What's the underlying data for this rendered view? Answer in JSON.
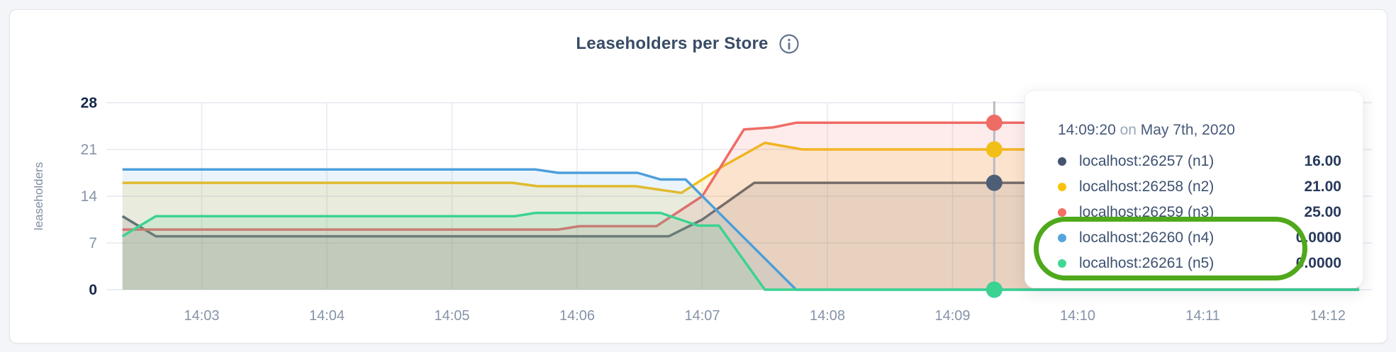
{
  "page": {
    "background": "#f4f5f9"
  },
  "panel": {
    "background": "#ffffff",
    "border_color": "#e3e4e7"
  },
  "header": {
    "title": "Leaseholders per Store"
  },
  "icons": {
    "info_icon": {
      "glyph": "i",
      "color": "#64748c"
    }
  },
  "chart_data": {
    "type": "area",
    "title": "Leaseholders per Store",
    "xlabel": "",
    "ylabel": "leaseholders",
    "ylim": [
      0,
      28
    ],
    "yticks": [
      0,
      7,
      14,
      21,
      28
    ],
    "ytick_bold": [
      0,
      28
    ],
    "xticks": [
      "14:03",
      "14:04",
      "14:05",
      "14:06",
      "14:07",
      "14:08",
      "14:09",
      "14:10",
      "14:11",
      "14:12"
    ],
    "x_domain": [
      "14:02:22",
      "14:12:15"
    ],
    "grid": true,
    "legend_position": "tooltip",
    "series": [
      {
        "name": "localhost:26257 (n1)",
        "color": "#4e5e77",
        "fill_opacity": 0.15,
        "points": [
          [
            "14:02:22",
            11
          ],
          [
            "14:02:38",
            8
          ],
          [
            "14:06:44",
            8
          ],
          [
            "14:07:00",
            10.5
          ],
          [
            "14:07:25",
            16
          ],
          [
            "14:12:15",
            16
          ]
        ]
      },
      {
        "name": "localhost:26258 (n2)",
        "color": "#f2bf19",
        "fill_opacity": 0.15,
        "points": [
          [
            "14:02:22",
            16
          ],
          [
            "14:05:29",
            16
          ],
          [
            "14:05:41",
            15.5
          ],
          [
            "14:06:28",
            15.5
          ],
          [
            "14:06:50",
            14.5
          ],
          [
            "14:07:10",
            18.5
          ],
          [
            "14:07:30",
            22
          ],
          [
            "14:07:48",
            21
          ],
          [
            "14:12:15",
            21
          ]
        ]
      },
      {
        "name": "localhost:26259 (n3)",
        "color": "#ef6c65",
        "fill_opacity": 0.13,
        "points": [
          [
            "14:02:22",
            9
          ],
          [
            "14:05:51",
            9
          ],
          [
            "14:06:01",
            9.5
          ],
          [
            "14:06:38",
            9.5
          ],
          [
            "14:07:00",
            14
          ],
          [
            "14:07:20",
            24
          ],
          [
            "14:07:34",
            24.3
          ],
          [
            "14:07:45",
            25
          ],
          [
            "14:12:15",
            25
          ]
        ]
      },
      {
        "name": "localhost:26260 (n4)",
        "color": "#4d9fdb",
        "fill_opacity": 0.11,
        "points": [
          [
            "14:02:22",
            18
          ],
          [
            "14:05:40",
            18
          ],
          [
            "14:05:51",
            17.5
          ],
          [
            "14:06:29",
            17.5
          ],
          [
            "14:06:40",
            16.5
          ],
          [
            "14:06:52",
            16.5
          ],
          [
            "14:07:45",
            0
          ],
          [
            "14:12:15",
            0
          ]
        ]
      },
      {
        "name": "localhost:26261 (n5)",
        "color": "#3bd392",
        "fill_opacity": 0.13,
        "points": [
          [
            "14:02:22",
            8
          ],
          [
            "14:02:38",
            11
          ],
          [
            "14:05:30",
            11
          ],
          [
            "14:05:40",
            11.5
          ],
          [
            "14:06:40",
            11.5
          ],
          [
            "14:06:58",
            9.6
          ],
          [
            "14:07:08",
            9.6
          ],
          [
            "14:07:30",
            0
          ],
          [
            "14:12:15",
            0
          ]
        ]
      }
    ],
    "hover": {
      "time": "14:09:20",
      "values": [
        16,
        21,
        25,
        0,
        0
      ],
      "line_color": "#b9bbc0"
    }
  },
  "tooltip": {
    "time": "14:09:20",
    "on_word": "on",
    "date": "May 7th, 2020",
    "rows": [
      {
        "label": "localhost:26257 (n1)",
        "value": "16.00",
        "color": "#44536e"
      },
      {
        "label": "localhost:26258 (n2)",
        "value": "21.00",
        "color": "#fac30b"
      },
      {
        "label": "localhost:26259 (n3)",
        "value": "25.00",
        "color": "#f36e66"
      },
      {
        "label": "localhost:26260 (n4)",
        "value": "0.0000",
        "color": "#56a4dd"
      },
      {
        "label": "localhost:26261 (n5)",
        "value": "0.0000",
        "color": "#43d795"
      }
    ],
    "highlight_rows": [
      3,
      4
    ],
    "annotation_color": "#4fa91b"
  },
  "axis_style": {
    "tick_color": "#8593a8",
    "tick_bold_color": "#15294b",
    "grid_color": "#e4e8ef",
    "ylabel_color": "#7e8da3"
  }
}
